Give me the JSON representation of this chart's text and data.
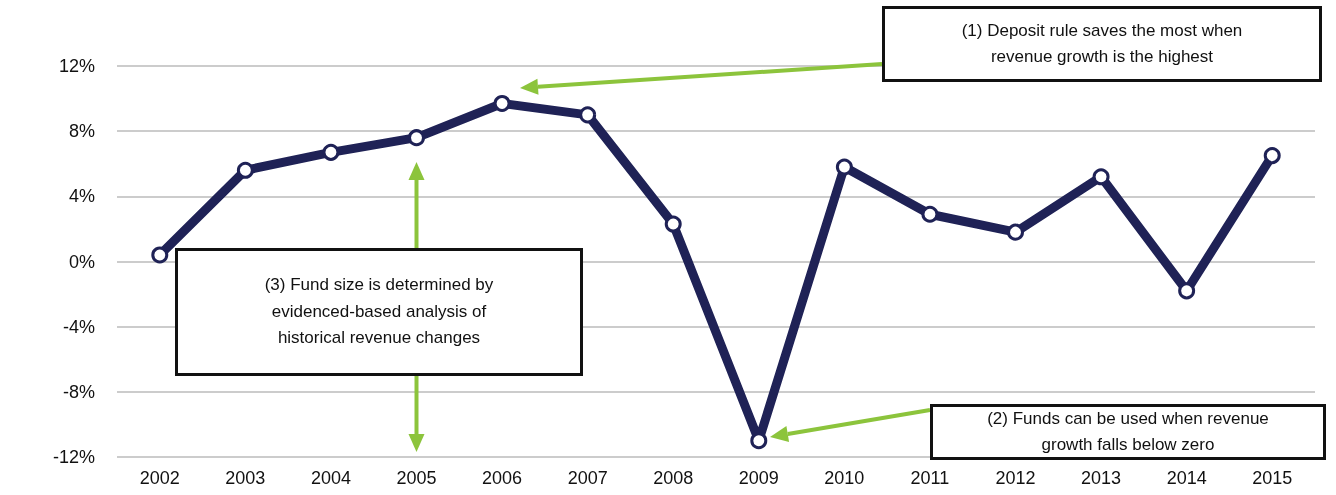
{
  "chart_data": {
    "type": "line",
    "categories": [
      "2002",
      "2003",
      "2004",
      "2005",
      "2006",
      "2007",
      "2008",
      "2009",
      "2010",
      "2011",
      "2012",
      "2013",
      "2014",
      "2015"
    ],
    "series": [
      {
        "color": "#1f2256",
        "values": [
          0.4,
          5.6,
          6.7,
          7.6,
          9.7,
          9.0,
          2.3,
          -11.0,
          5.8,
          2.9,
          1.8,
          5.2,
          -1.8,
          6.5
        ]
      }
    ],
    "ylim": [
      -12,
      12
    ],
    "yticks": [
      {
        "value": -12,
        "label": "-12%"
      },
      {
        "value": -8,
        "label": "-8%"
      },
      {
        "value": -4,
        "label": "-4%"
      },
      {
        "value": 0,
        "label": "0%"
      },
      {
        "value": 4,
        "label": "4%"
      },
      {
        "value": 8,
        "label": "8%"
      },
      {
        "value": 12,
        "label": "12%"
      }
    ],
    "grid": "y",
    "marker": "circle",
    "line_style": "solid",
    "annotations": [
      "(1) Deposit rule saves the most when revenue growth is the highest",
      "(2) Funds can be used when revenue growth falls below zero",
      "(3) Fund size is determined by evidenced-based analysis of historical revenue changes"
    ]
  }
}
